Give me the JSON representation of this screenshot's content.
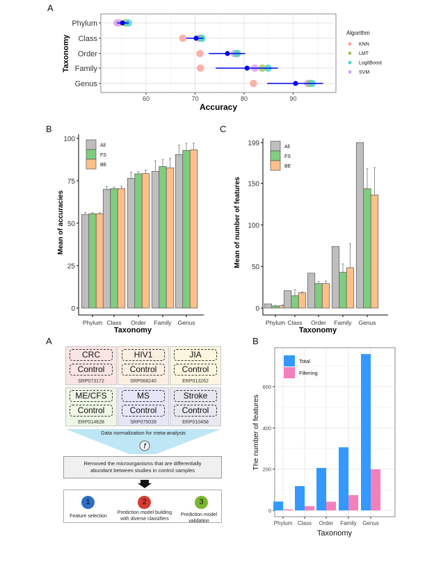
{
  "chart_data": [
    {
      "panel": "A",
      "type": "scatter",
      "title": "",
      "xlabel": "Accuracy",
      "ylabel": "Taxonomy",
      "xlim": [
        52.5,
        100.5
      ],
      "xticks": [
        60,
        70,
        80,
        90
      ],
      "categories": [
        "Phylum",
        "Class",
        "Order",
        "Family",
        "Genus"
      ],
      "legend": {
        "title": "Algorithm",
        "position": "right"
      },
      "series": [
        {
          "name": "KNN",
          "color": "#f8a49c",
          "values": [
            54.5,
            67.5,
            71.0,
            71.1,
            81.9
          ]
        },
        {
          "name": "LMT",
          "color": "#a3c75a",
          "values": [
            55.8,
            71.2,
            78.5,
            83.7,
            93.4
          ]
        },
        {
          "name": "LogitBoost",
          "color": "#4fd3d5",
          "values": [
            56.4,
            71.4,
            78.6,
            84.9,
            93.9
          ]
        },
        {
          "name": "SVM",
          "color": "#d7a2f2",
          "values": [
            54.1,
            70.8,
            78.0,
            82.2,
            93.0
          ]
        }
      ],
      "mean": {
        "color": "#0000ee",
        "values": [
          55.2,
          70.2,
          76.6,
          80.6,
          90.5
        ],
        "low": [
          54.1,
          68.2,
          72.8,
          74.2,
          84.7
        ],
        "high": [
          56.5,
          71.7,
          80.2,
          86.9,
          96.1
        ]
      },
      "grid": true
    },
    {
      "panel": "B",
      "type": "bar",
      "xlabel": "Taxonomy",
      "ylabel": "Mean of accuracies",
      "ylim": [
        0,
        100
      ],
      "yticks": [
        0,
        25,
        50,
        75,
        100
      ],
      "categories": [
        "Phylum",
        "Class",
        "Order",
        "Family",
        "Genus"
      ],
      "legend": {
        "position": "top-left"
      },
      "series": [
        {
          "name": "All",
          "color": "#bebebe",
          "values": [
            55.1,
            70.0,
            76.5,
            80.6,
            90.5
          ],
          "err": [
            1.3,
            1.6,
            3.7,
            6.2,
            5.5
          ]
        },
        {
          "name": "FS",
          "color": "#7fcd7f",
          "values": [
            55.6,
            70.4,
            79.1,
            83.4,
            92.9
          ],
          "err": [
            0.7,
            0.9,
            1.3,
            4.2,
            4.2
          ]
        },
        {
          "name": "BE",
          "color": "#fec08a",
          "values": [
            55.6,
            70.4,
            79.3,
            82.6,
            93.3
          ],
          "err": [
            0.6,
            1.4,
            2.1,
            5.7,
            3.9
          ]
        }
      ],
      "grid": false
    },
    {
      "panel": "C",
      "type": "bar",
      "xlabel": "Taxonomy",
      "ylabel": "Mean of number of features",
      "ylim": [
        0,
        199
      ],
      "yticks": [
        0,
        50,
        100,
        150,
        199
      ],
      "categories": [
        "Phylum",
        "Class",
        "Order",
        "Family",
        "Genus"
      ],
      "legend": {
        "position": "top-left"
      },
      "series": [
        {
          "name": "All",
          "color": "#bebebe",
          "values": [
            5,
            21,
            42,
            74,
            199
          ],
          "err": [
            0,
            0,
            0,
            0,
            0
          ]
        },
        {
          "name": "FS",
          "color": "#7fcd7f",
          "values": [
            2.5,
            15,
            29.5,
            43,
            143.5
          ],
          "err": [
            0.8,
            7,
            2.5,
            10,
            24
          ]
        },
        {
          "name": "BE",
          "color": "#fec08a",
          "values": [
            2.8,
            18.5,
            29.5,
            48.5,
            136
          ],
          "err": [
            1,
            0.8,
            3,
            29,
            33
          ]
        }
      ],
      "grid": false
    },
    {
      "panel": "B (lower)",
      "type": "bar",
      "xlabel": "Taxonomy",
      "ylabel": "The number of features",
      "ylim": [
        -40,
        790
      ],
      "yticks": [
        0,
        200,
        400,
        600
      ],
      "categories": [
        "Phylum",
        "Class",
        "Order",
        "Family",
        "Genus"
      ],
      "legend": {
        "position": "top-left"
      },
      "series": [
        {
          "name": "Total",
          "color": "#3399ff",
          "values": [
            43,
            118,
            206,
            306,
            758
          ]
        },
        {
          "name": "Filtering",
          "color": "#f47fbd",
          "values": [
            5,
            21,
            42,
            74,
            199
          ]
        }
      ],
      "grid": true
    }
  ],
  "panel_labels": {
    "top_a": "A",
    "mid_b": "B",
    "mid_c": "C",
    "bottom_a": "A",
    "bottom_b": "B"
  },
  "diagram": {
    "studies": [
      {
        "disease": "CRC",
        "control": "Control",
        "accession": "SRP073172",
        "bg": "#fbe4e4"
      },
      {
        "disease": "HIV1",
        "control": "Control",
        "accession": "SRP068240",
        "bg": "#fbefe2"
      },
      {
        "disease": "JIA",
        "control": "Control",
        "accession": "ERP013262",
        "bg": "#fcf6e0"
      },
      {
        "disease": "ME/CFS",
        "control": "Control",
        "accession": "ERP014628",
        "bg": "#eef6e6"
      },
      {
        "disease": "MS",
        "control": "Control",
        "accession": "SRP075039",
        "bg": "#e6e6f8"
      },
      {
        "disease": "Stroke",
        "control": "Control",
        "accession": "ERP010458",
        "bg": "#e8e8f0"
      }
    ],
    "normalization_label": "Data normalization for meta-analysis",
    "function_symbol": "f",
    "removed_text_line1": "Removed the microorganisms that are differentially",
    "removed_text_line2": "abundant between studies in control samples",
    "steps": [
      {
        "number": "1",
        "color": "#2e6fc4",
        "label_line1": "Feature selection",
        "label_line2": ""
      },
      {
        "number": "2",
        "color": "#d63a32",
        "label_line1": "Prediction model building",
        "label_line2": "with diverse classifiers"
      },
      {
        "number": "3",
        "color": "#7ab532",
        "label_line1": "Prediction model",
        "label_line2": "validation"
      }
    ]
  }
}
